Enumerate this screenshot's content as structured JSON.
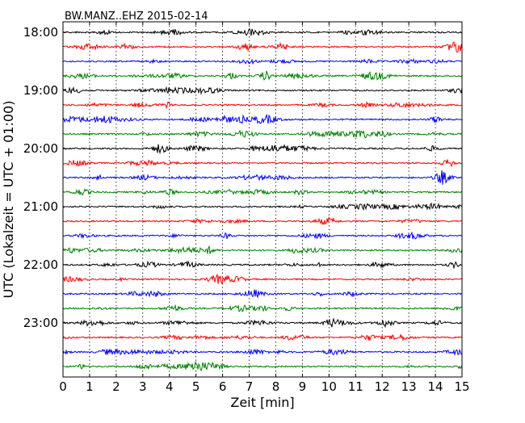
{
  "chart_data": {
    "type": "line",
    "title": "BW.MANZ..EHZ 2015-02-14",
    "xlabel": "Zeit  [min]",
    "ylabel": "UTC (Lokalzeit = UTC + 01:00)",
    "xlim": [
      0,
      15
    ],
    "x_ticks": [
      "0",
      "1",
      "2",
      "3",
      "4",
      "5",
      "6",
      "7",
      "8",
      "9",
      "10",
      "11",
      "12",
      "13",
      "14",
      "15"
    ],
    "y_ticks": [
      "18:00",
      "19:00",
      "20:00",
      "21:00",
      "22:00",
      "23:00"
    ],
    "grid": "vertical-dotted",
    "trace_interval_minutes": 15,
    "trace_colors": [
      "#000000",
      "#ff0000",
      "#0000ff",
      "#008000"
    ],
    "series": [
      {
        "start": "18:00",
        "color": "#000000"
      },
      {
        "start": "18:15",
        "color": "#ff0000"
      },
      {
        "start": "18:30",
        "color": "#0000ff"
      },
      {
        "start": "18:45",
        "color": "#008000"
      },
      {
        "start": "19:00",
        "color": "#000000"
      },
      {
        "start": "19:15",
        "color": "#ff0000"
      },
      {
        "start": "19:30",
        "color": "#0000ff"
      },
      {
        "start": "19:45",
        "color": "#008000"
      },
      {
        "start": "20:00",
        "color": "#000000"
      },
      {
        "start": "20:15",
        "color": "#ff0000"
      },
      {
        "start": "20:30",
        "color": "#0000ff"
      },
      {
        "start": "20:45",
        "color": "#008000"
      },
      {
        "start": "21:00",
        "color": "#000000"
      },
      {
        "start": "21:15",
        "color": "#ff0000"
      },
      {
        "start": "21:30",
        "color": "#0000ff"
      },
      {
        "start": "21:45",
        "color": "#008000"
      },
      {
        "start": "22:00",
        "color": "#000000"
      },
      {
        "start": "22:15",
        "color": "#ff0000"
      },
      {
        "start": "22:30",
        "color": "#0000ff"
      },
      {
        "start": "22:45",
        "color": "#008000"
      },
      {
        "start": "23:00",
        "color": "#000000"
      },
      {
        "start": "23:15",
        "color": "#ff0000"
      },
      {
        "start": "23:30",
        "color": "#0000ff"
      },
      {
        "start": "23:45",
        "color": "#008000"
      }
    ]
  }
}
